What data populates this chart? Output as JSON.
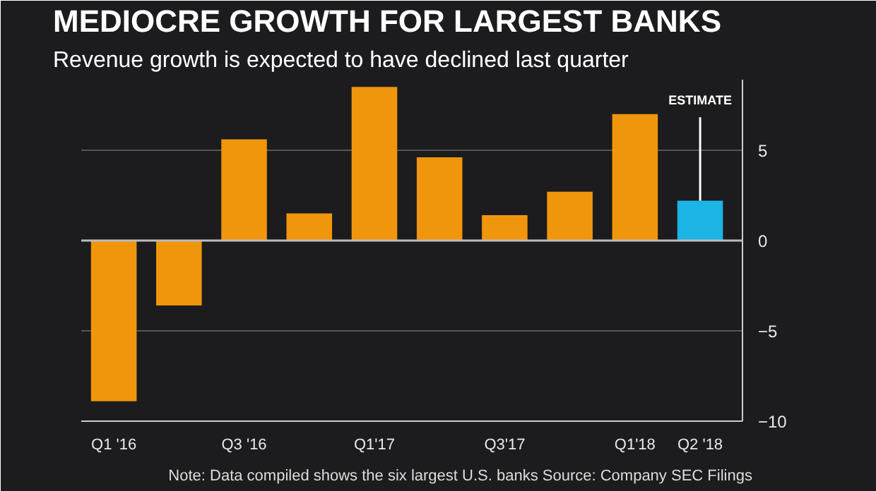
{
  "chart_data": {
    "type": "bar",
    "title": "MEDIOCRE GROWTH FOR LARGEST BANKS",
    "subtitle": "Revenue growth is expected to have declined last quarter",
    "categories": [
      "Q1 '16",
      null,
      "Q3 '16",
      null,
      "Q1'17",
      null,
      "Q3'17",
      null,
      "Q1'18",
      "Q2 '18"
    ],
    "values": [
      -8.9,
      -3.6,
      5.6,
      1.5,
      8.5,
      4.6,
      1.4,
      2.7,
      7.0,
      2.2
    ],
    "colors": [
      "#f0960c",
      "#f0960c",
      "#f0960c",
      "#f0960c",
      "#f0960c",
      "#f0960c",
      "#f0960c",
      "#f0960c",
      "#f0960c",
      "#1cb4e4"
    ],
    "ylim": [
      -10,
      8.9
    ],
    "yticks": [
      -10,
      -5,
      0,
      5
    ],
    "grid": "y",
    "annotations": [
      {
        "text": "ESTIMATE",
        "x": "Q2 '18",
        "y": 2.2
      },
      "Note: Data compiled shows the six largest U.S. banks  Source: Company SEC Filings"
    ]
  }
}
